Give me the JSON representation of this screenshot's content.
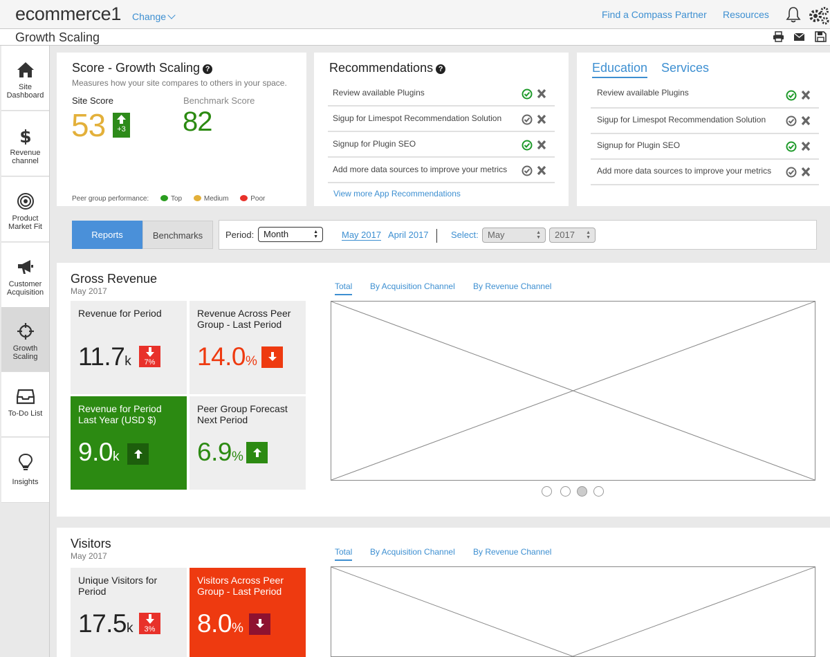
{
  "header": {
    "brand": "ecommerce1",
    "change_label": "Change",
    "links": [
      "Find a Compass Partner",
      "Resources"
    ],
    "page_title": "Growth Scaling"
  },
  "sidebar": {
    "items": [
      {
        "label": "Site Dashboard",
        "icon": "home-icon"
      },
      {
        "label": "Revenue channel",
        "icon": "dollar-icon"
      },
      {
        "label": "Product Market Fit",
        "icon": "target-icon"
      },
      {
        "label": "Customer Acquisition",
        "icon": "megaphone-icon"
      },
      {
        "label": "Growth Scaling",
        "icon": "crosshair-icon",
        "active": true
      },
      {
        "label": "To-Do List",
        "icon": "inbox-icon"
      },
      {
        "label": "Insights",
        "icon": "lightbulb-icon"
      }
    ]
  },
  "score": {
    "title": "Score - Growth Scaling",
    "description": "Measures how your site compares to others in your space.",
    "site_label": "Site Score",
    "site_value": "53",
    "site_change": "+3",
    "bench_label": "Benchmark Score",
    "bench_value": "82",
    "legend_label": "Peer group performance:",
    "legend": [
      {
        "label": "Top",
        "color": "#2a9d1f"
      },
      {
        "label": "Medium",
        "color": "#e3b03a"
      },
      {
        "label": "Poor",
        "color": "#e8312a"
      }
    ]
  },
  "recommendations": {
    "title": "Recommendations",
    "items": [
      {
        "text": "Review available Plugins",
        "accepted": true
      },
      {
        "text": "Sigup for Limespot Recommendation Solution",
        "accepted": false
      },
      {
        "text": "Signup for Plugin SEO",
        "accepted": true
      },
      {
        "text": "Add more data sources to improve your metrics",
        "accepted": false
      }
    ],
    "more_link": "View  more App Recommendations"
  },
  "education": {
    "tabs": [
      "Education",
      "Services"
    ],
    "items": [
      {
        "text": "Review available Plugins",
        "accepted": true
      },
      {
        "text": "Sigup for Limespot Recommendation Solution",
        "accepted": false
      },
      {
        "text": "Signup for Plugin SEO",
        "accepted": true
      },
      {
        "text": "Add more data sources to improve your metrics",
        "accepted": false
      }
    ]
  },
  "filters": {
    "segments": [
      "Reports",
      "Benchmarks"
    ],
    "period_label": "Period:",
    "period_value": "Month",
    "period_links": [
      "May 2017",
      "April 2017"
    ],
    "select_label": "Select:",
    "month_value": "May",
    "year_value": "2017"
  },
  "gross_revenue": {
    "title": "Gross Revenue",
    "subtitle": "May 2017",
    "tiles": [
      {
        "label": "Revenue for Period",
        "value": "11.7",
        "unit": "k",
        "badge": "7%",
        "direction": "down"
      },
      {
        "label": "Revenue Across Peer Group - Last Period",
        "value": "14.0",
        "unit": "%",
        "badge": "",
        "direction": "down"
      },
      {
        "label": "Revenue for Period Last Year (USD $)",
        "value": "9.0",
        "unit": "k",
        "badge": "",
        "direction": "up"
      },
      {
        "label": "Peer Group Forecast Next Period",
        "value": "6.9",
        "unit": "%",
        "badge": "",
        "direction": "up"
      }
    ],
    "chart_tabs": [
      "Total",
      "By Acquisition Channel",
      "By Revenue Channel"
    ]
  },
  "visitors": {
    "title": "Visitors",
    "subtitle": "May 2017",
    "tiles": [
      {
        "label": "Unique Visitors for Period",
        "value": "17.5",
        "unit": "k",
        "badge": "3%",
        "direction": "down"
      },
      {
        "label": "Visitors Across Peer Group - Last Period",
        "value": "8.0",
        "unit": "%",
        "badge": "",
        "direction": "down"
      }
    ],
    "chart_tabs": [
      "Total",
      "By Acquisition Channel",
      "By Revenue Channel"
    ]
  },
  "colors": {
    "accent": "#3d8fd1",
    "green": "#2c8a12",
    "red": "#ee3a10",
    "yellow": "#e3b03a"
  }
}
